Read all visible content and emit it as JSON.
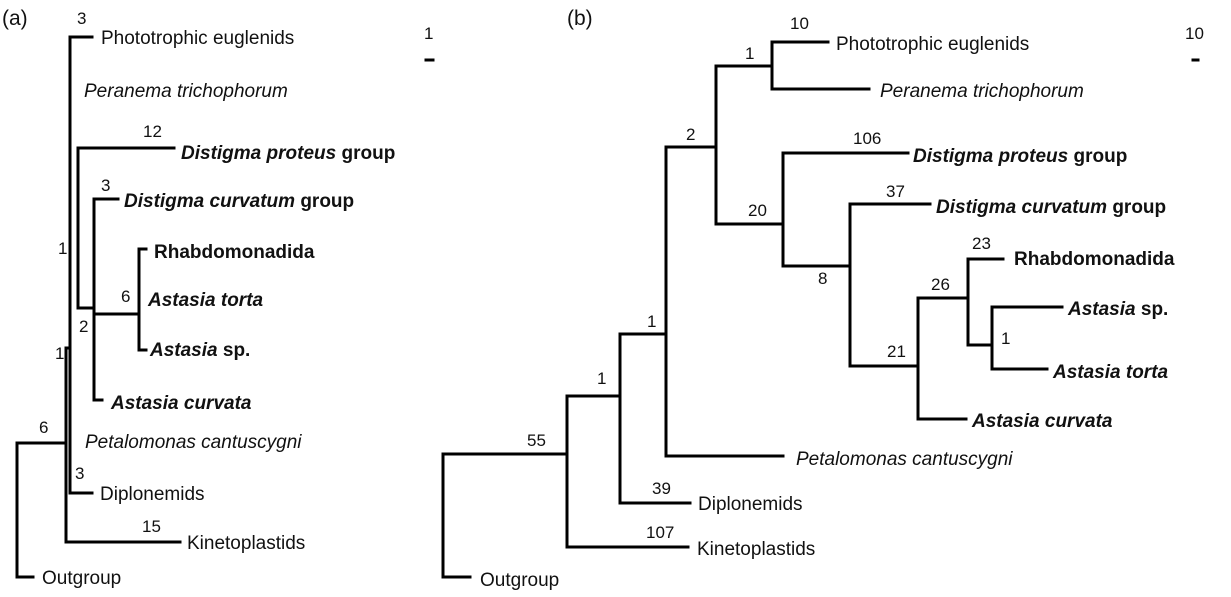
{
  "panel_a": {
    "panel_label": "(a)",
    "scale_bar_value": "1",
    "taxa": {
      "phototrophic": "Phototrophic euglenids",
      "peranema": "Peranema trichophorum",
      "distigma_proteus_ital": "Distigma proteus",
      "distigma_proteus_rest": " group",
      "distigma_curvatum_ital": "Distigma curvatum",
      "distigma_curvatum_rest": " group",
      "rhabdo": "Rhabdomonadida",
      "astasia_torta": "Astasia torta",
      "astasia_sp_ital": "Astasia",
      "astasia_sp_rest": " sp.",
      "astasia_curvata": "Astasia curvata",
      "petalomonas": "Petalomonas cantuscygni",
      "diplonemids": "Diplonemids",
      "kinetoplastids": "Kinetoplastids",
      "outgroup": "Outgroup"
    },
    "branch_lengths": {
      "phototrophic": "3",
      "distigma_proteus": "12",
      "distigma_curvatum": "3",
      "astasia_clade": "6",
      "node_2": "2",
      "euglenid_node": "1",
      "euglenozoa_node": "1",
      "root": "6",
      "diplonemids": "3",
      "kinetoplastids": "15"
    }
  },
  "panel_b": {
    "panel_label": "(b)",
    "scale_bar_value": "10",
    "taxa": {
      "phototrophic": "Phototrophic euglenids",
      "peranema": "Peranema trichophorum",
      "distigma_proteus_ital": "Distigma proteus",
      "distigma_proteus_rest": " group",
      "distigma_curvatum_ital": "Distigma curvatum",
      "distigma_curvatum_rest": " group",
      "rhabdo": "Rhabdomonadida",
      "astasia_sp_ital": "Astasia",
      "astasia_sp_rest": " sp.",
      "astasia_torta": "Astasia torta",
      "astasia_curvata": "Astasia curvata",
      "petalomonas": "Petalomonas cantuscygni",
      "diplonemids": "Diplonemids",
      "kinetoplastids": "Kinetoplastids",
      "outgroup": "Outgroup"
    },
    "branch_lengths": {
      "phototrophic": "10",
      "node_photo_peranema": "1",
      "node_2": "2",
      "distigma_proteus": "106",
      "node_20": "20",
      "distigma_curvatum": "37",
      "node_8": "8",
      "rhabdo": "23",
      "node_26": "26",
      "astasia_pair": "1",
      "node_21": "21",
      "euglenid_node": "1",
      "diplo_node": "1",
      "root": "55",
      "diplonemids": "39",
      "kinetoplastids": "107"
    }
  }
}
